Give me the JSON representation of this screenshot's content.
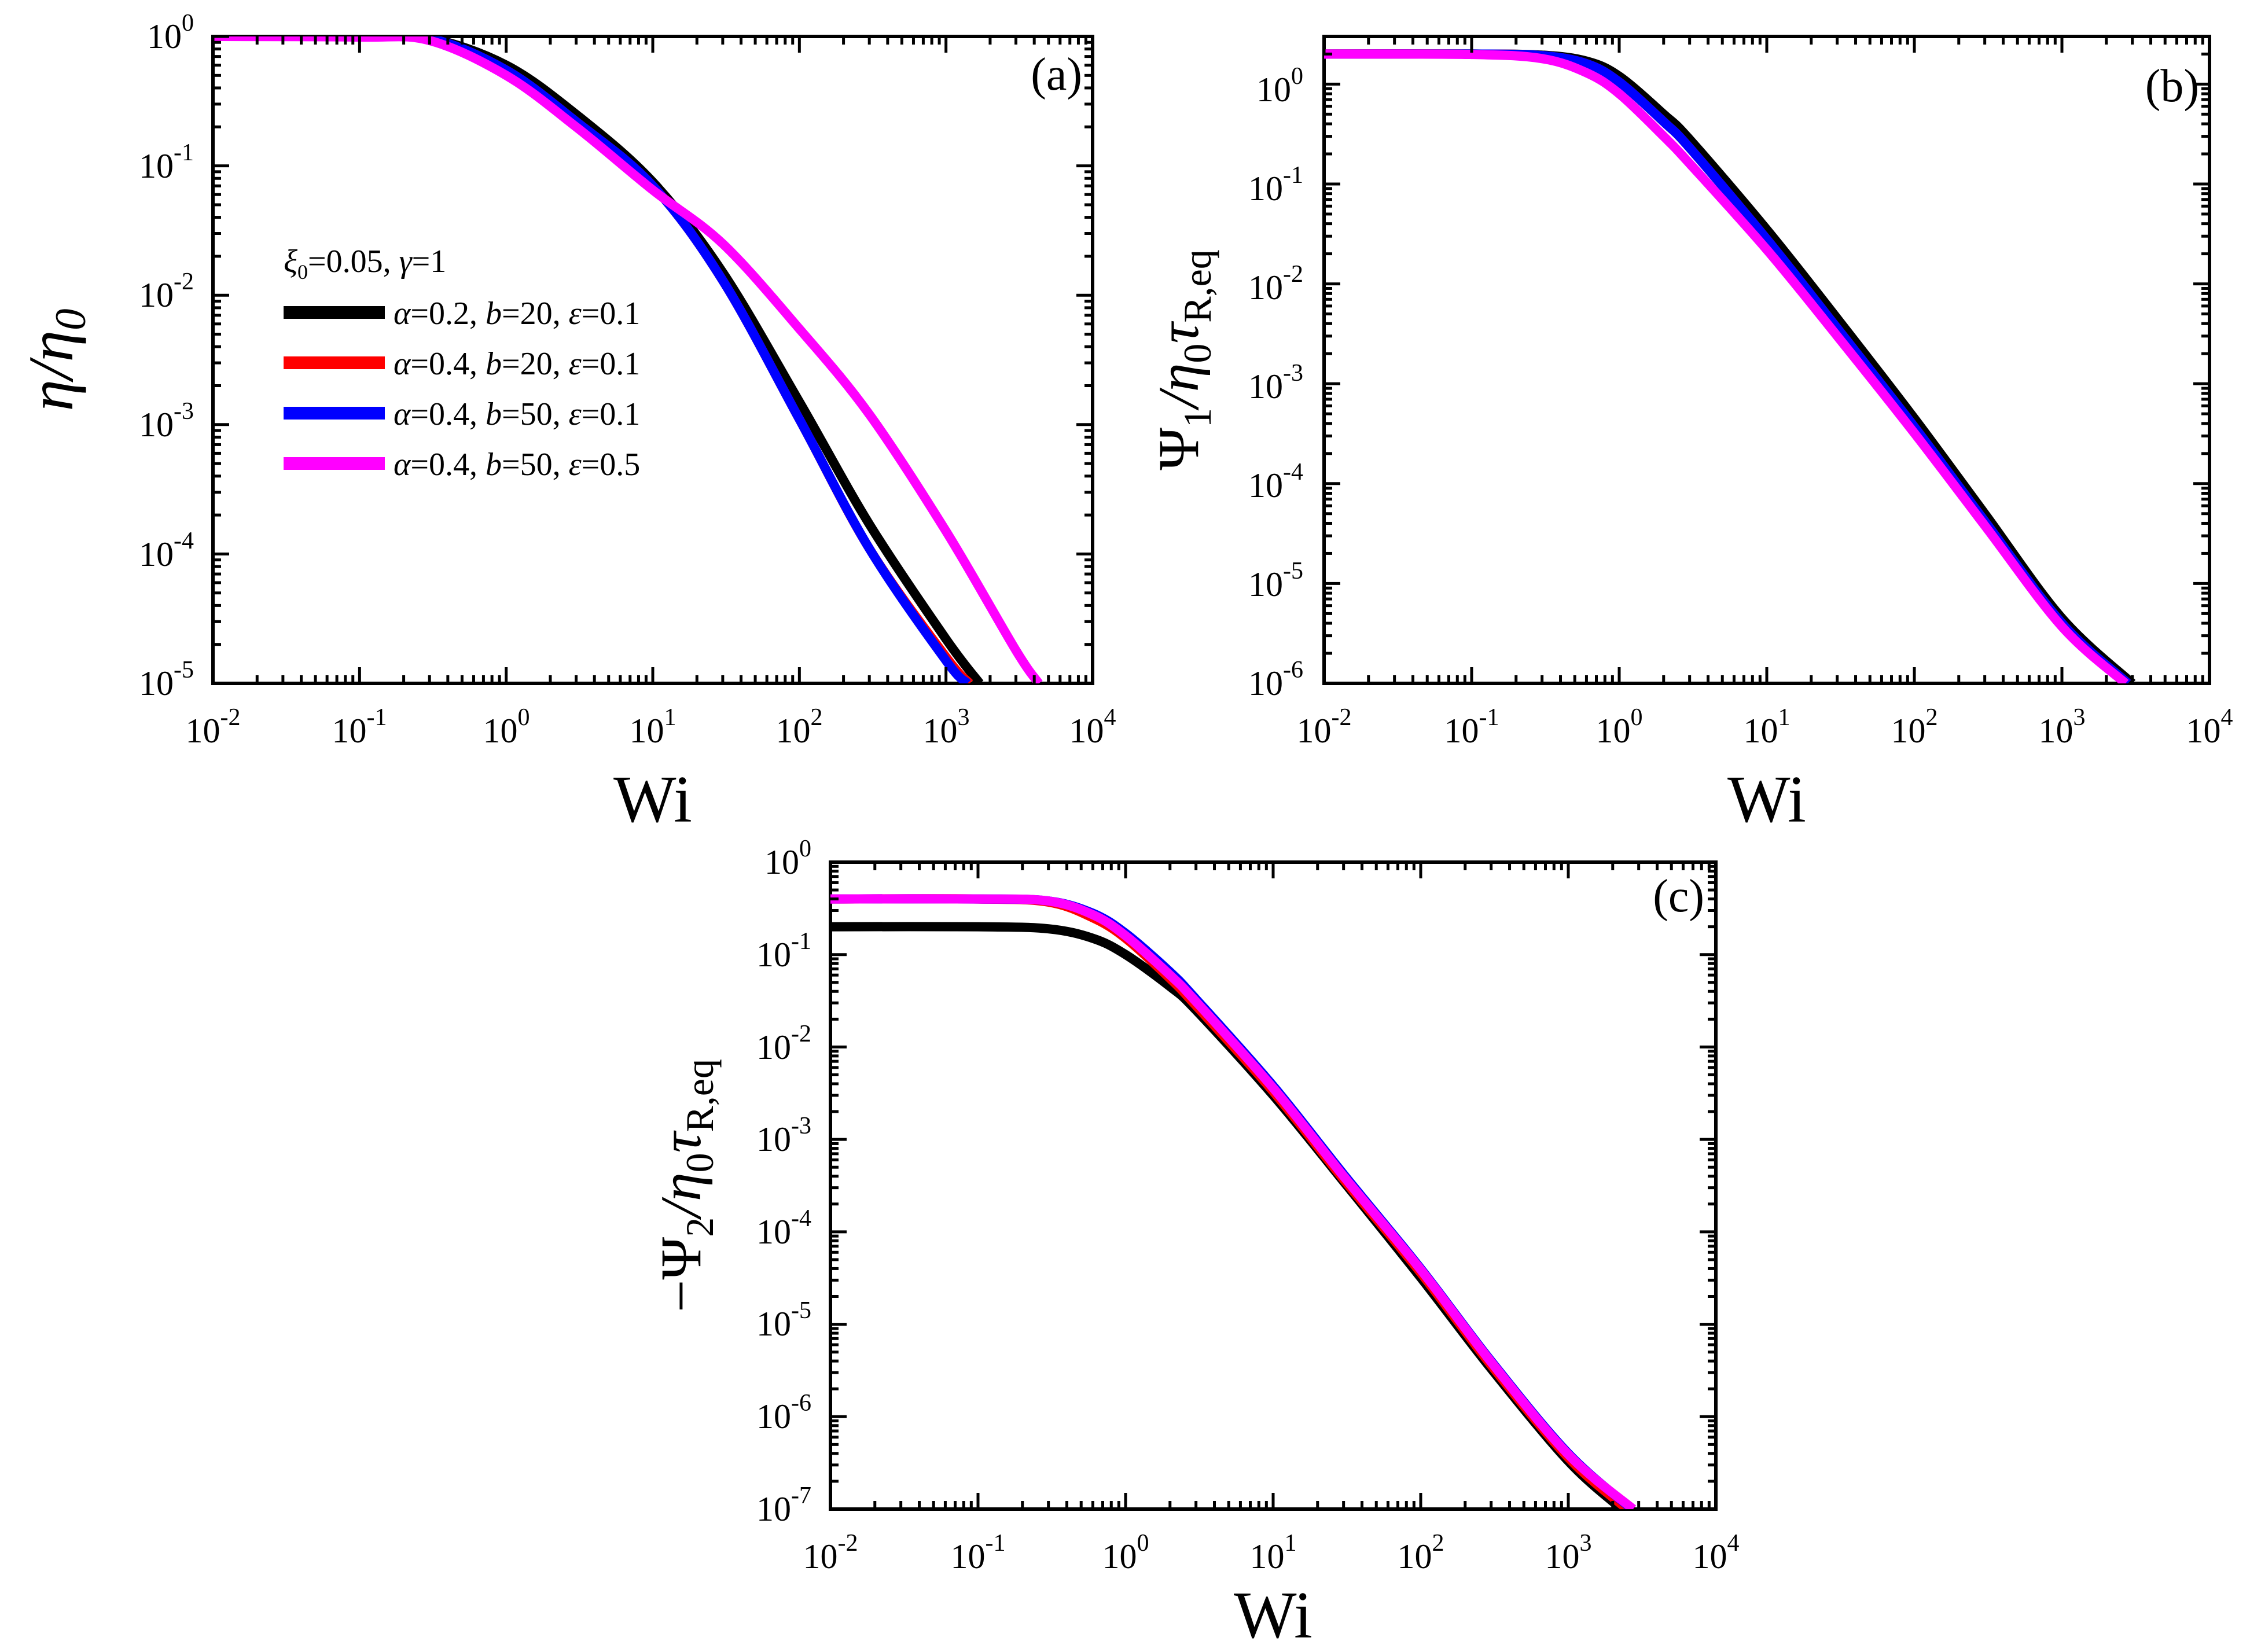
{
  "figure": {
    "legend_header": "ξ0=0.05, γ=1",
    "series_defs": [
      {
        "name": "α=0.2, b=20, ε=0.1",
        "color": "#000000"
      },
      {
        "name": "α=0.4, b=20, ε=0.1",
        "color": "#ff0000"
      },
      {
        "name": "α=0.4, b=50, ε=0.1",
        "color": "#0000ff"
      },
      {
        "name": "α=0.4, b=50, ε=0.5",
        "color": "#ff00ff"
      }
    ]
  },
  "chart_data": [
    {
      "panel": "(a)",
      "type": "line",
      "xscale": "log",
      "yscale": "log",
      "xlabel": "Wi",
      "ylabel": "η/η0",
      "xlim": [
        0.01,
        10000
      ],
      "ylim": [
        1e-05,
        1
      ],
      "xticks": [
        "10-2",
        "10-1",
        "100",
        "101",
        "102",
        "103",
        "104"
      ],
      "yticks": [
        "10-5",
        "10-4",
        "10-3",
        "10-2",
        "10-1",
        "100"
      ],
      "legend": [
        "α=0.2, b=20, ε=0.1",
        "α=0.4, b=20, ε=0.1",
        "α=0.4, b=50, ε=0.1",
        "α=0.4, b=50, ε=0.5"
      ],
      "series": [
        {
          "name": "α=0.2, b=20, ε=0.1",
          "color": "#000000",
          "x": [
            0.01,
            0.1,
            0.3,
            1,
            3,
            10,
            30,
            100,
            300,
            1000,
            1700
          ],
          "y": [
            1,
            1,
            0.97,
            0.6,
            0.25,
            0.075,
            0.015,
            0.0015,
            0.00017,
            2.2e-05,
            1e-05
          ]
        },
        {
          "name": "α=0.4, b=20, ε=0.1",
          "color": "#ff0000",
          "x": [
            0.01,
            0.1,
            0.3,
            1,
            3,
            10,
            30,
            100,
            300,
            1000,
            1450
          ],
          "y": [
            1,
            1,
            0.97,
            0.55,
            0.22,
            0.07,
            0.013,
            0.0011,
            0.00011,
            1.6e-05,
            1e-05
          ]
        },
        {
          "name": "α=0.4, b=50, ε=0.1",
          "color": "#0000ff",
          "x": [
            0.01,
            0.1,
            0.3,
            1,
            3,
            10,
            30,
            100,
            300,
            1000,
            1400
          ],
          "y": [
            1,
            1,
            0.97,
            0.55,
            0.22,
            0.07,
            0.013,
            0.0011,
            0.00011,
            1.5e-05,
            1e-05
          ]
        },
        {
          "name": "α=0.4, b=50, ε=0.5",
          "color": "#ff00ff",
          "x": [
            0.01,
            0.1,
            0.3,
            1,
            3,
            10,
            30,
            100,
            300,
            1000,
            3000,
            4300
          ],
          "y": [
            1,
            0.99,
            0.93,
            0.5,
            0.2,
            0.065,
            0.025,
            0.0055,
            0.0012,
            0.00015,
            1.8e-05,
            1e-05
          ]
        }
      ]
    },
    {
      "panel": "(b)",
      "type": "line",
      "xscale": "log",
      "yscale": "log",
      "xlabel": "Wi",
      "ylabel": "Ψ1/η0τR,eq",
      "xlim": [
        0.01,
        10000
      ],
      "ylim": [
        1e-06,
        3
      ],
      "xticks": [
        "10-2",
        "10-1",
        "100",
        "101",
        "102",
        "103",
        "104"
      ],
      "yticks": [
        "10-6",
        "10-5",
        "10-4",
        "10-3",
        "10-2",
        "10-1",
        "100"
      ],
      "series": [
        {
          "name": "α=0.2, b=20, ε=0.1",
          "color": "#000000",
          "x": [
            0.01,
            0.1,
            0.3,
            0.6,
            1,
            2,
            3,
            10,
            30,
            100,
            300,
            1000,
            3000
          ],
          "y": [
            2,
            2,
            1.95,
            1.7,
            1.2,
            0.5,
            0.28,
            0.035,
            0.0045,
            0.00045,
            5e-05,
            4.5e-06,
            1e-06
          ]
        },
        {
          "name": "α=0.4, b=20, ε=0.1",
          "color": "#ff0000",
          "x": [
            0.01,
            0.1,
            0.3,
            0.6,
            1,
            2,
            3,
            10,
            30,
            100,
            300,
            1000,
            2800
          ],
          "y": [
            2,
            2,
            1.93,
            1.6,
            1.05,
            0.42,
            0.23,
            0.028,
            0.0036,
            0.00037,
            4.2e-05,
            4e-06,
            1e-06
          ]
        },
        {
          "name": "α=0.4, b=50, ε=0.1",
          "color": "#0000ff",
          "x": [
            0.01,
            0.1,
            0.3,
            0.6,
            1,
            2,
            3,
            10,
            30,
            100,
            300,
            1000,
            2800
          ],
          "y": [
            2,
            2,
            1.93,
            1.6,
            1.05,
            0.42,
            0.23,
            0.028,
            0.0036,
            0.00037,
            4.2e-05,
            4e-06,
            1e-06
          ]
        },
        {
          "name": "α=0.4, b=50, ε=0.5",
          "color": "#ff00ff",
          "x": [
            0.01,
            0.1,
            0.3,
            0.6,
            1,
            2,
            3,
            10,
            30,
            100,
            300,
            1000,
            2700
          ],
          "y": [
            2,
            1.98,
            1.8,
            1.3,
            0.8,
            0.3,
            0.16,
            0.022,
            0.003,
            0.00032,
            3.8e-05,
            3.7e-06,
            1e-06
          ]
        }
      ]
    },
    {
      "panel": "(c)",
      "type": "line",
      "xscale": "log",
      "yscale": "log",
      "xlabel": "Wi",
      "ylabel": "-Ψ2/η0τR,eq",
      "xlim": [
        0.01,
        10000
      ],
      "ylim": [
        1e-07,
        1
      ],
      "xticks": [
        "10-2",
        "10-1",
        "100",
        "101",
        "102",
        "103",
        "104"
      ],
      "yticks": [
        "10-7",
        "10-6",
        "10-5",
        "10-4",
        "10-3",
        "10-2",
        "10-1",
        "100"
      ],
      "series": [
        {
          "name": "α=0.2, b=20, ε=0.1",
          "color": "#000000",
          "x": [
            0.01,
            0.1,
            0.3,
            0.6,
            1,
            2,
            3,
            10,
            30,
            100,
            300,
            1000,
            2300
          ],
          "y": [
            0.2,
            0.2,
            0.19,
            0.15,
            0.1,
            0.045,
            0.025,
            0.003,
            0.00035,
            3.2e-05,
            3.3e-06,
            3.3e-07,
            1e-07
          ]
        },
        {
          "name": "α=0.4, b=20, ε=0.1",
          "color": "#ff0000",
          "x": [
            0.01,
            0.1,
            0.3,
            0.6,
            1,
            2,
            3,
            10,
            30,
            100,
            300,
            1000,
            2500
          ],
          "y": [
            0.4,
            0.4,
            0.37,
            0.25,
            0.15,
            0.055,
            0.028,
            0.0033,
            0.00037,
            3.6e-05,
            3.6e-06,
            3.6e-07,
            1e-07
          ]
        },
        {
          "name": "α=0.4, b=50, ε=0.1",
          "color": "#0000ff",
          "x": [
            0.01,
            0.1,
            0.3,
            0.6,
            1,
            2,
            3,
            10,
            30,
            100,
            300,
            1000,
            2700
          ],
          "y": [
            0.4,
            0.4,
            0.38,
            0.28,
            0.17,
            0.065,
            0.033,
            0.0038,
            0.00042,
            4e-05,
            4e-06,
            4e-07,
            1e-07
          ]
        },
        {
          "name": "α=0.4, b=50, ε=0.5",
          "color": "#ff00ff",
          "x": [
            0.01,
            0.1,
            0.3,
            0.6,
            1,
            2,
            3,
            10,
            30,
            100,
            300,
            1000,
            2750
          ],
          "y": [
            0.4,
            0.4,
            0.38,
            0.27,
            0.16,
            0.06,
            0.031,
            0.0036,
            0.0004,
            3.9e-05,
            3.9e-06,
            3.9e-07,
            1e-07
          ]
        }
      ]
    }
  ]
}
